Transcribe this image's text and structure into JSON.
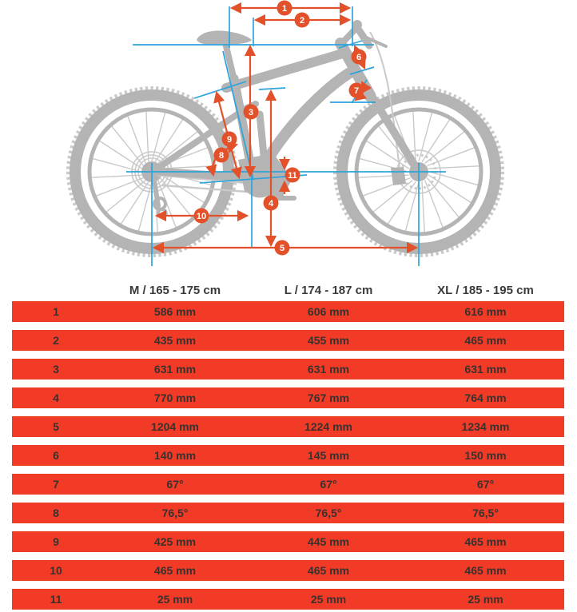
{
  "diagram": {
    "callouts": [
      "1",
      "2",
      "3",
      "4",
      "5",
      "6",
      "7",
      "8",
      "9",
      "10",
      "11"
    ],
    "colors": {
      "dimension_orange": "#e2512a",
      "construction_cyan": "#2ea4da",
      "bike_silhouette_gray": "#b4b4b4",
      "table_band_red": "#f23b26",
      "table_text": "#38322f"
    }
  },
  "table": {
    "size_columns": [
      "M / 165 - 175 cm",
      "L / 174 - 187 cm",
      "XL / 185 - 195 cm"
    ],
    "rows": [
      {
        "label": "1",
        "values": [
          "586 mm",
          "606 mm",
          "616 mm"
        ]
      },
      {
        "label": "2",
        "values": [
          "435 mm",
          "455 mm",
          "465 mm"
        ]
      },
      {
        "label": "3",
        "values": [
          "631 mm",
          "631 mm",
          "631 mm"
        ]
      },
      {
        "label": "4",
        "values": [
          "770 mm",
          "767 mm",
          "764 mm"
        ]
      },
      {
        "label": "5",
        "values": [
          "1204 mm",
          "1224 mm",
          "1234 mm"
        ]
      },
      {
        "label": "6",
        "values": [
          "140 mm",
          "145 mm",
          "150 mm"
        ]
      },
      {
        "label": "7",
        "values": [
          "67°",
          "67°",
          "67°"
        ]
      },
      {
        "label": "8",
        "values": [
          "76,5°",
          "76,5°",
          "76,5°"
        ]
      },
      {
        "label": "9",
        "values": [
          "425 mm",
          "445 mm",
          "465 mm"
        ]
      },
      {
        "label": "10",
        "values": [
          "465 mm",
          "465 mm",
          "465 mm"
        ]
      },
      {
        "label": "11",
        "values": [
          "25 mm",
          "25 mm",
          "25 mm"
        ]
      }
    ]
  }
}
